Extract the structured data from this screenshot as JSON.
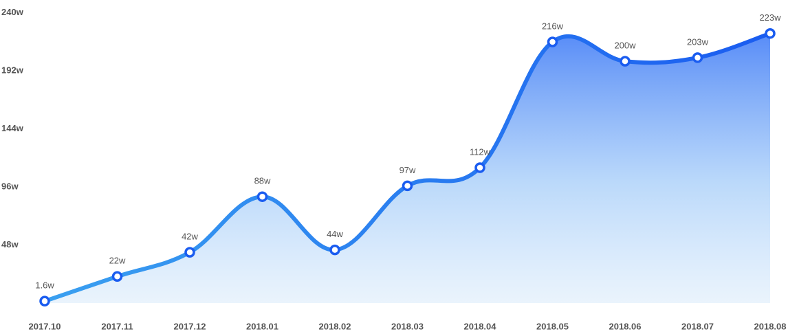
{
  "chart_data": {
    "type": "area",
    "categories": [
      "2017.10",
      "2017.11",
      "2017.12",
      "2018.01",
      "2018.02",
      "2018.03",
      "2018.04",
      "2018.05",
      "2018.06",
      "2018.07",
      "2018.08"
    ],
    "values": [
      1.6,
      22,
      42,
      88,
      44,
      97,
      112,
      216,
      200,
      203,
      223
    ],
    "value_labels": [
      "1.6w",
      "22w",
      "42w",
      "88w",
      "44w",
      "97w",
      "112w",
      "216w",
      "200w",
      "203w",
      "223w"
    ],
    "color": "#1a5cf0",
    "ylim": [
      0,
      245
    ],
    "yticks": [
      {
        "value": 48,
        "label": "48w"
      },
      {
        "value": 96,
        "label": "96w"
      },
      {
        "value": 144,
        "label": "144w"
      },
      {
        "value": 192,
        "label": "192w"
      },
      {
        "value": 240,
        "label": "240w"
      }
    ],
    "grid": false
  }
}
